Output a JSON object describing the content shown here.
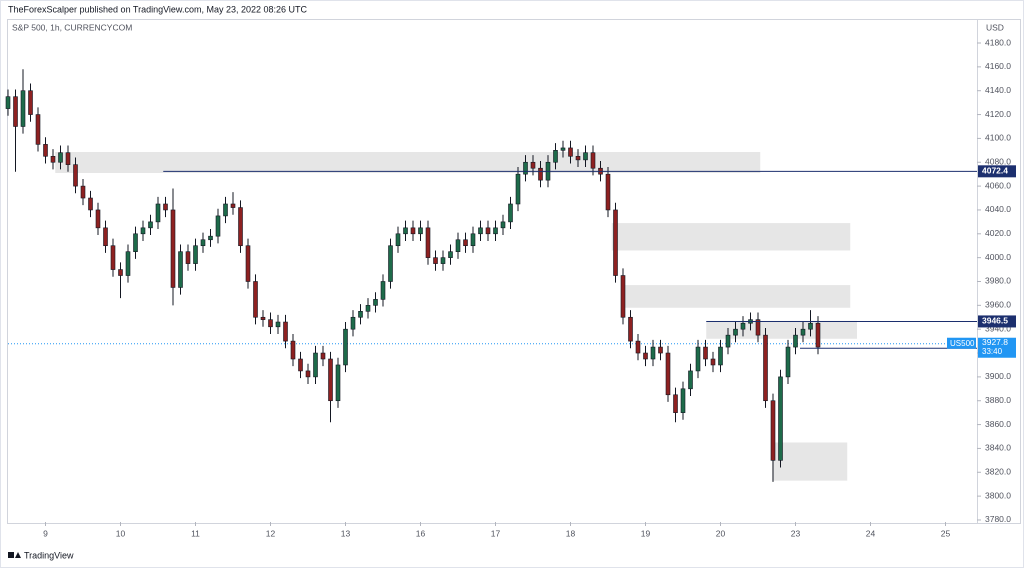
{
  "chart_data": {
    "type": "candlestick",
    "header": "TheForexScalper published on TradingView.com, May 23, 2022 08:26 UTC",
    "title": "S&P 500, 1h, CURRENCYCOM",
    "currency": "USD",
    "source": "TradingView",
    "up_color": "#1e6b4a",
    "down_color": "#8e2121",
    "wick_color": "#131722",
    "x": [
      0,
      1,
      2,
      3,
      4,
      5,
      6,
      7,
      8,
      9,
      10,
      11,
      12,
      13,
      14,
      15,
      16,
      17,
      18,
      19,
      20,
      21,
      22,
      23,
      24,
      25,
      26,
      27,
      28,
      29,
      30,
      31,
      32,
      33,
      34,
      35,
      36,
      37,
      38,
      39,
      40,
      41,
      42,
      43,
      44,
      45,
      46,
      47,
      48,
      49,
      50,
      51,
      52,
      53,
      54,
      55,
      56,
      57,
      58,
      59,
      60,
      61,
      62,
      63,
      64,
      65,
      66,
      67,
      68,
      69,
      70,
      71,
      72,
      73,
      74,
      75,
      76,
      77,
      78,
      79,
      80,
      81,
      82,
      83,
      84,
      85,
      86,
      87,
      88,
      89,
      90,
      91,
      92,
      93,
      94,
      95,
      96,
      97,
      98,
      99,
      100,
      101,
      102,
      103,
      104,
      105,
      106,
      107,
      108
    ],
    "open": [
      4125,
      4135,
      4110,
      4140,
      4120,
      4095,
      4085,
      4080,
      4088,
      4078,
      4060,
      4050,
      4040,
      4025,
      4010,
      3990,
      3985,
      4005,
      4020,
      4025,
      4030,
      4045,
      4040,
      3975,
      4005,
      3995,
      4010,
      4015,
      4018,
      4035,
      4045,
      4042,
      4010,
      3980,
      3950,
      3948,
      3942,
      3946,
      3930,
      3915,
      3905,
      3900,
      3920,
      3915,
      3880,
      3910,
      3940,
      3950,
      3955,
      3960,
      3965,
      3980,
      4010,
      4020,
      4025,
      4020,
      4025,
      4000,
      3995,
      4000,
      4005,
      4015,
      4010,
      4020,
      4025,
      4020,
      4025,
      4030,
      4045,
      4070,
      4080,
      4075,
      4065,
      4080,
      4090,
      4092,
      4085,
      4082,
      4088,
      4075,
      4070,
      4040,
      3985,
      3950,
      3930,
      3920,
      3915,
      3925,
      3920,
      3885,
      3870,
      3890,
      3905,
      3925,
      3915,
      3910,
      3925,
      3935,
      3940,
      3945,
      3948,
      3935,
      3880,
      3830,
      3900,
      3925,
      3935,
      3940,
      3945
    ],
    "high": [
      4141,
      4141,
      4158,
      4146,
      4126,
      4101,
      4091,
      4094,
      4094,
      4084,
      4066,
      4056,
      4046,
      4031,
      4016,
      3996,
      4011,
      4026,
      4031,
      4036,
      4051,
      4051,
      4058,
      4011,
      4011,
      4016,
      4021,
      4024,
      4041,
      4051,
      4055,
      4048,
      4016,
      3986,
      3956,
      3954,
      3952,
      3952,
      3936,
      3921,
      3911,
      3926,
      3926,
      3921,
      3916,
      3946,
      3956,
      3961,
      3966,
      3971,
      3986,
      4016,
      4026,
      4031,
      4031,
      4031,
      4031,
      4006,
      4006,
      4011,
      4021,
      4021,
      4026,
      4031,
      4031,
      4031,
      4036,
      4051,
      4076,
      4086,
      4086,
      4081,
      4086,
      4096,
      4098,
      4098,
      4091,
      4094,
      4094,
      4081,
      4076,
      4046,
      3991,
      3956,
      3936,
      3926,
      3931,
      3931,
      3926,
      3891,
      3896,
      3911,
      3931,
      3931,
      3921,
      3931,
      3941,
      3946,
      3951,
      3954,
      3954,
      3941,
      3886,
      3906,
      3931,
      3941,
      3946,
      3956,
      3951
    ],
    "low": [
      4119,
      4072,
      4104,
      4114,
      4089,
      4079,
      4074,
      4074,
      4072,
      4054,
      4044,
      4034,
      4019,
      4004,
      3984,
      3966,
      3979,
      3999,
      4014,
      4019,
      4024,
      4034,
      3960,
      3969,
      3989,
      3989,
      4004,
      4009,
      4012,
      4029,
      4036,
      4004,
      3974,
      3944,
      3942,
      3936,
      3936,
      3924,
      3909,
      3899,
      3894,
      3894,
      3909,
      3862,
      3874,
      3904,
      3934,
      3944,
      3949,
      3954,
      3959,
      3974,
      4004,
      4014,
      4014,
      4014,
      3994,
      3989,
      3989,
      3994,
      3999,
      4004,
      4004,
      4014,
      4014,
      4014,
      4019,
      4024,
      4039,
      4064,
      4069,
      4059,
      4059,
      4074,
      4084,
      4079,
      4076,
      4076,
      4069,
      4064,
      4034,
      3979,
      3944,
      3924,
      3914,
      3909,
      3909,
      3914,
      3879,
      3862,
      3864,
      3884,
      3899,
      3909,
      3904,
      3904,
      3919,
      3929,
      3934,
      3939,
      3929,
      3874,
      3812,
      3824,
      3894,
      3919,
      3929,
      3934,
      3919
    ],
    "close": [
      4135,
      4110,
      4140,
      4120,
      4095,
      4085,
      4080,
      4088,
      4078,
      4060,
      4050,
      4040,
      4025,
      4010,
      3990,
      3985,
      4005,
      4020,
      4025,
      4030,
      4045,
      4040,
      3975,
      4005,
      3995,
      4010,
      4015,
      4018,
      4035,
      4045,
      4042,
      4010,
      3980,
      3950,
      3948,
      3942,
      3946,
      3930,
      3915,
      3905,
      3900,
      3920,
      3915,
      3880,
      3910,
      3940,
      3950,
      3955,
      3960,
      3965,
      3980,
      4010,
      4020,
      4025,
      4020,
      4025,
      4000,
      3995,
      4000,
      4005,
      4015,
      4010,
      4020,
      4025,
      4020,
      4025,
      4030,
      4045,
      4070,
      4080,
      4075,
      4065,
      4080,
      4090,
      4092,
      4085,
      4082,
      4088,
      4075,
      4070,
      4040,
      3985,
      3950,
      3930,
      3920,
      3915,
      3925,
      3920,
      3885,
      3870,
      3890,
      3905,
      3925,
      3915,
      3910,
      3925,
      3935,
      3940,
      3945,
      3948,
      3935,
      3880,
      3830,
      3900,
      3925,
      3935,
      3940,
      3945,
      3925
    ],
    "xlim": [
      0,
      129.2
    ],
    "ylim": [
      3778.3,
      4199.3
    ],
    "xticks": [
      {
        "value": 5,
        "label": "9"
      },
      {
        "value": 15,
        "label": "10"
      },
      {
        "value": 25,
        "label": "11"
      },
      {
        "value": 35,
        "label": "12"
      },
      {
        "value": 45,
        "label": "13"
      },
      {
        "value": 55,
        "label": "16"
      },
      {
        "value": 65,
        "label": "17"
      },
      {
        "value": 75,
        "label": "18"
      },
      {
        "value": 85,
        "label": "19"
      },
      {
        "value": 95,
        "label": "20"
      },
      {
        "value": 105,
        "label": "23"
      },
      {
        "value": 115,
        "label": "24"
      },
      {
        "value": 125,
        "label": "25"
      }
    ],
    "yticks": [
      {
        "value": 3780,
        "label": "3780.0"
      },
      {
        "value": 3800,
        "label": "3800.0"
      },
      {
        "value": 3820,
        "label": "3820.0"
      },
      {
        "value": 3840,
        "label": "3840.0"
      },
      {
        "value": 3860,
        "label": "3860.0"
      },
      {
        "value": 3880,
        "label": "3880.0"
      },
      {
        "value": 3900,
        "label": "3900.0"
      },
      {
        "value": 3920,
        "label": "3920.0"
      },
      {
        "value": 3940,
        "label": "3940.0"
      },
      {
        "value": 3960,
        "label": "3960.0"
      },
      {
        "value": 3980,
        "label": "3980.0"
      },
      {
        "value": 4000,
        "label": "4000.0"
      },
      {
        "value": 4020,
        "label": "4020.0"
      },
      {
        "value": 4040,
        "label": "4040.0"
      },
      {
        "value": 4060,
        "label": "4060.0"
      },
      {
        "value": 4080,
        "label": "4080.0"
      },
      {
        "value": 4100,
        "label": "4100.0"
      },
      {
        "value": 4120,
        "label": "4120.0"
      },
      {
        "value": 4140,
        "label": "4140.0"
      },
      {
        "value": 4160,
        "label": "4160.0"
      },
      {
        "value": 4180,
        "label": "4180.0"
      }
    ],
    "zones": [
      {
        "x": [
          6.3,
          100.3
        ],
        "y": [
          4071,
          4088.6
        ],
        "color": "#e0e0e0"
      },
      {
        "x": [
          80.5,
          112.3
        ],
        "y": [
          4006,
          4029
        ],
        "color": "#e0e0e0"
      },
      {
        "x": [
          81.9,
          112.3
        ],
        "y": [
          3958,
          3977
        ],
        "color": "#e0e0e0"
      },
      {
        "x": [
          93.1,
          113.2
        ],
        "y": [
          3932,
          3947
        ],
        "color": "#e0e0e0"
      },
      {
        "x": [
          101.9,
          111.9
        ],
        "y": [
          3813,
          3845
        ],
        "color": "#e0e0e0"
      }
    ],
    "levels": [
      {
        "value": 4072.4,
        "x_start": 20.7,
        "color": "#1c2f6e"
      },
      {
        "value": 3946.5,
        "x_start": 93.1,
        "color": "#1c2f6e"
      },
      {
        "value": 3924.0,
        "x_start": 105.6,
        "color": "#1c2f6e"
      }
    ],
    "current": {
      "value": 3927.8,
      "symbol": "US500",
      "countdown": "33:40",
      "color": "#2196f3"
    }
  }
}
